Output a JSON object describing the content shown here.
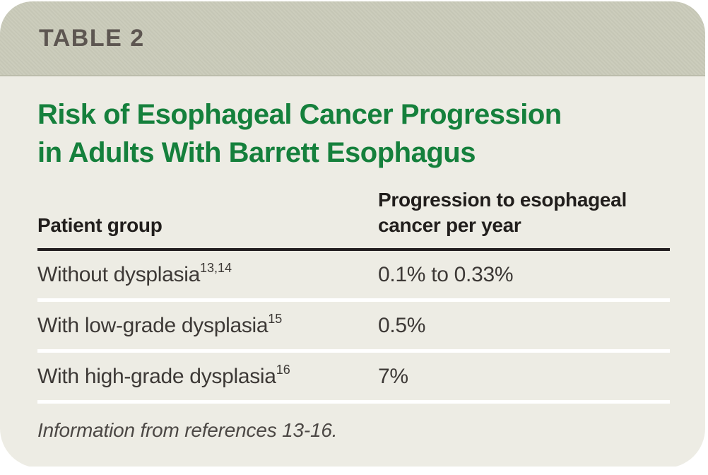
{
  "card": {
    "label": "TABLE 2"
  },
  "title": {
    "line1": "Risk of Esophageal Cancer Progression",
    "line2": "in Adults With Barrett Esophagus"
  },
  "table": {
    "columns": {
      "patient_group": "Patient group",
      "progression": "Progression to esophageal cancer per year"
    },
    "rows": [
      {
        "group": "Without dysplasia",
        "refs": "13,14",
        "value": "0.1% to 0.33%"
      },
      {
        "group": "With low-grade dysplasia",
        "refs": "15",
        "value": "0.5%"
      },
      {
        "group": "With high-grade dysplasia",
        "refs": "16",
        "value": "7%"
      }
    ]
  },
  "footnote": "Information from references 13-16.",
  "colors": {
    "band": "#c9cab9",
    "card_bg": "#edece4",
    "title_green": "#15803c",
    "band_text": "#5d5651",
    "header_text": "#211e1c",
    "row_text": "#3d3936",
    "rule": "#231f20",
    "separator": "#ffffff"
  }
}
